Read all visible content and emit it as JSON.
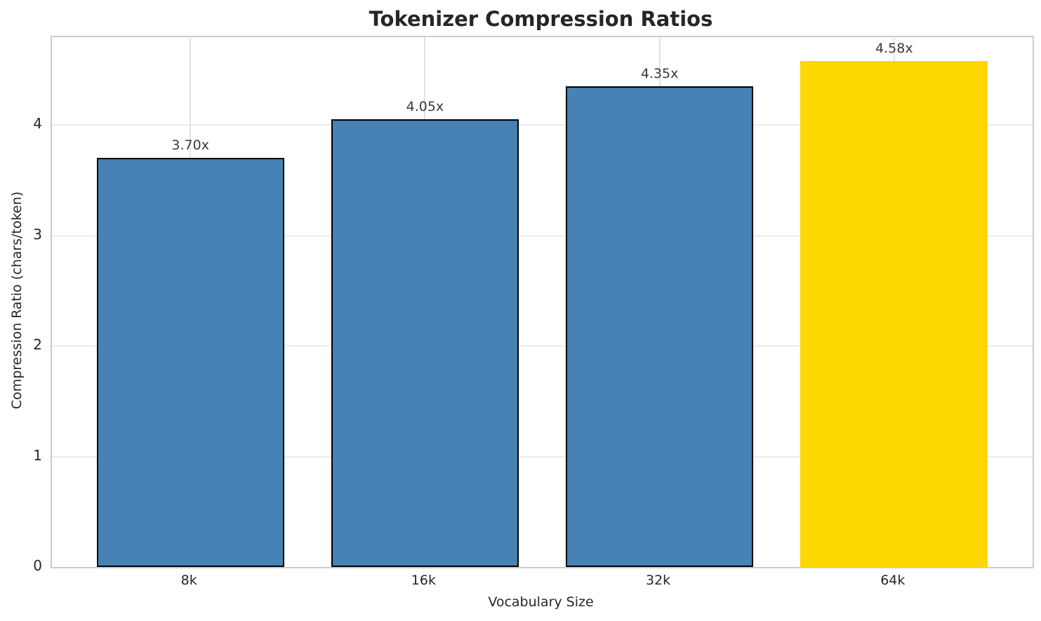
{
  "chart_data": {
    "type": "bar",
    "title": "Tokenizer Compression Ratios",
    "xlabel": "Vocabulary Size",
    "ylabel": "Compression Ratio (chars/token)",
    "categories": [
      "8k",
      "16k",
      "32k",
      "64k"
    ],
    "values": [
      3.7,
      4.05,
      4.35,
      4.58
    ],
    "value_labels": [
      "3.70x",
      "4.05x",
      "4.35x",
      "4.58x"
    ],
    "yticks": [
      0,
      1,
      2,
      3,
      4
    ],
    "ylim": [
      0,
      4.794
    ],
    "grid": true,
    "legend_position": "none",
    "bar_colors": [
      "#4682B4",
      "#4682B4",
      "#4682B4",
      "#FFD700"
    ],
    "bar_edge_color": "#000000",
    "bar_edge_widths": [
      2,
      2,
      2,
      0
    ],
    "grid_color": "#e8e8e8",
    "spine_color": "#cccccc",
    "title_color": "#262626",
    "text_color": "#262626"
  }
}
